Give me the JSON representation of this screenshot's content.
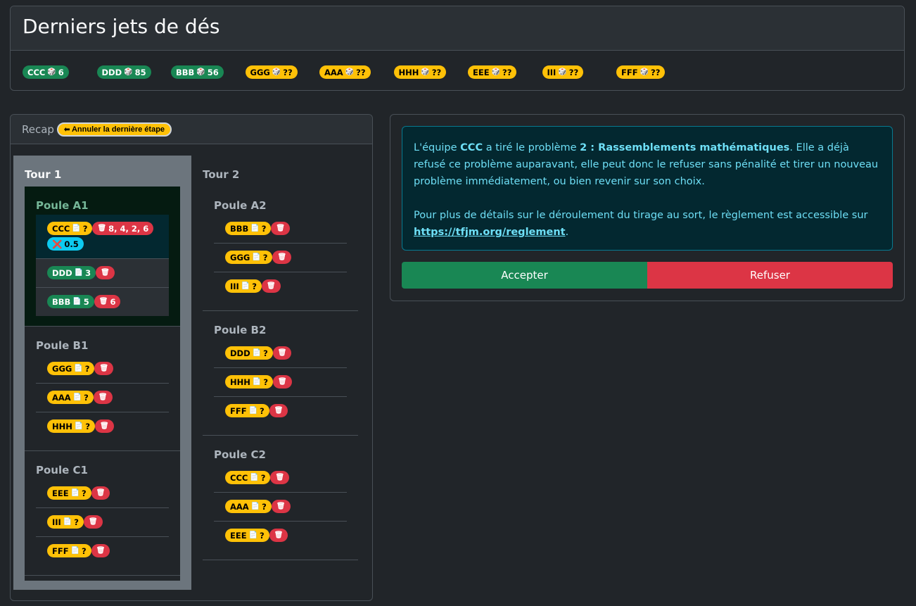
{
  "title": "Derniers jets de dés",
  "dice": [
    {
      "team": "CCC",
      "value": "6",
      "color": "green"
    },
    {
      "team": "DDD",
      "value": "85",
      "color": "green"
    },
    {
      "team": "BBB",
      "value": "56",
      "color": "green"
    },
    {
      "team": "GGG",
      "value": "??",
      "color": "yellow"
    },
    {
      "team": "AAA",
      "value": "??",
      "color": "yellow"
    },
    {
      "team": "HHH",
      "value": "??",
      "color": "yellow"
    },
    {
      "team": "EEE",
      "value": "??",
      "color": "yellow"
    },
    {
      "team": "III",
      "value": "??",
      "color": "yellow"
    },
    {
      "team": "FFF",
      "value": "??",
      "color": "yellow"
    }
  ],
  "recap": {
    "label": "Recap",
    "undo": "Annuler la dernière étape",
    "tours": [
      {
        "name": "Tour 1",
        "poules": [
          {
            "name": "Poule A1",
            "active": true,
            "teams": [
              {
                "team": "CCC",
                "problem": "?",
                "color": "yellow",
                "rejected": "8, 4, 2, 6",
                "penalty": "0.5",
                "current": true
              },
              {
                "team": "DDD",
                "problem": "3",
                "color": "green",
                "rejected": ""
              },
              {
                "team": "BBB",
                "problem": "5",
                "color": "green",
                "rejected": "6"
              }
            ]
          },
          {
            "name": "Poule B1",
            "teams": [
              {
                "team": "GGG",
                "problem": "?",
                "color": "yellow",
                "rejected": ""
              },
              {
                "team": "AAA",
                "problem": "?",
                "color": "yellow",
                "rejected": ""
              },
              {
                "team": "HHH",
                "problem": "?",
                "color": "yellow",
                "rejected": ""
              }
            ]
          },
          {
            "name": "Poule C1",
            "teams": [
              {
                "team": "EEE",
                "problem": "?",
                "color": "yellow",
                "rejected": ""
              },
              {
                "team": "III",
                "problem": "?",
                "color": "yellow",
                "rejected": ""
              },
              {
                "team": "FFF",
                "problem": "?",
                "color": "yellow",
                "rejected": ""
              }
            ]
          }
        ]
      },
      {
        "name": "Tour 2",
        "poules": [
          {
            "name": "Poule A2",
            "teams": [
              {
                "team": "BBB",
                "problem": "?",
                "color": "yellow",
                "rejected": ""
              },
              {
                "team": "GGG",
                "problem": "?",
                "color": "yellow",
                "rejected": ""
              },
              {
                "team": "III",
                "problem": "?",
                "color": "yellow",
                "rejected": ""
              }
            ]
          },
          {
            "name": "Poule B2",
            "teams": [
              {
                "team": "DDD",
                "problem": "?",
                "color": "yellow",
                "rejected": ""
              },
              {
                "team": "HHH",
                "problem": "?",
                "color": "yellow",
                "rejected": ""
              },
              {
                "team": "FFF",
                "problem": "?",
                "color": "yellow",
                "rejected": ""
              }
            ]
          },
          {
            "name": "Poule C2",
            "teams": [
              {
                "team": "CCC",
                "problem": "?",
                "color": "yellow",
                "rejected": ""
              },
              {
                "team": "AAA",
                "problem": "?",
                "color": "yellow",
                "rejected": ""
              },
              {
                "team": "EEE",
                "problem": "?",
                "color": "yellow",
                "rejected": ""
              }
            ]
          }
        ]
      }
    ]
  },
  "message": {
    "p1_a": "L'équipe ",
    "team": "CCC",
    "p1_b": " a tiré le problème ",
    "problem": "2 : Rassemblements mathématiques",
    "p1_c": ". Elle a déjà refusé ce problème auparavant, elle peut donc le refuser sans pénalité et tirer un nouveau problème immédiatement, ou bien revenir sur son choix.",
    "p2": "Pour plus de détails sur le déroulement du tirage au sort, le règlement est accessible sur ",
    "link": "https://tfjm.org/reglement",
    "p2_end": "."
  },
  "buttons": {
    "accept": "Accepter",
    "refuse": "Refuser"
  },
  "colors": {
    "green": "#198754",
    "yellow": "#ffc107",
    "red": "#dc3545",
    "cyan": "#0dcaf0"
  }
}
